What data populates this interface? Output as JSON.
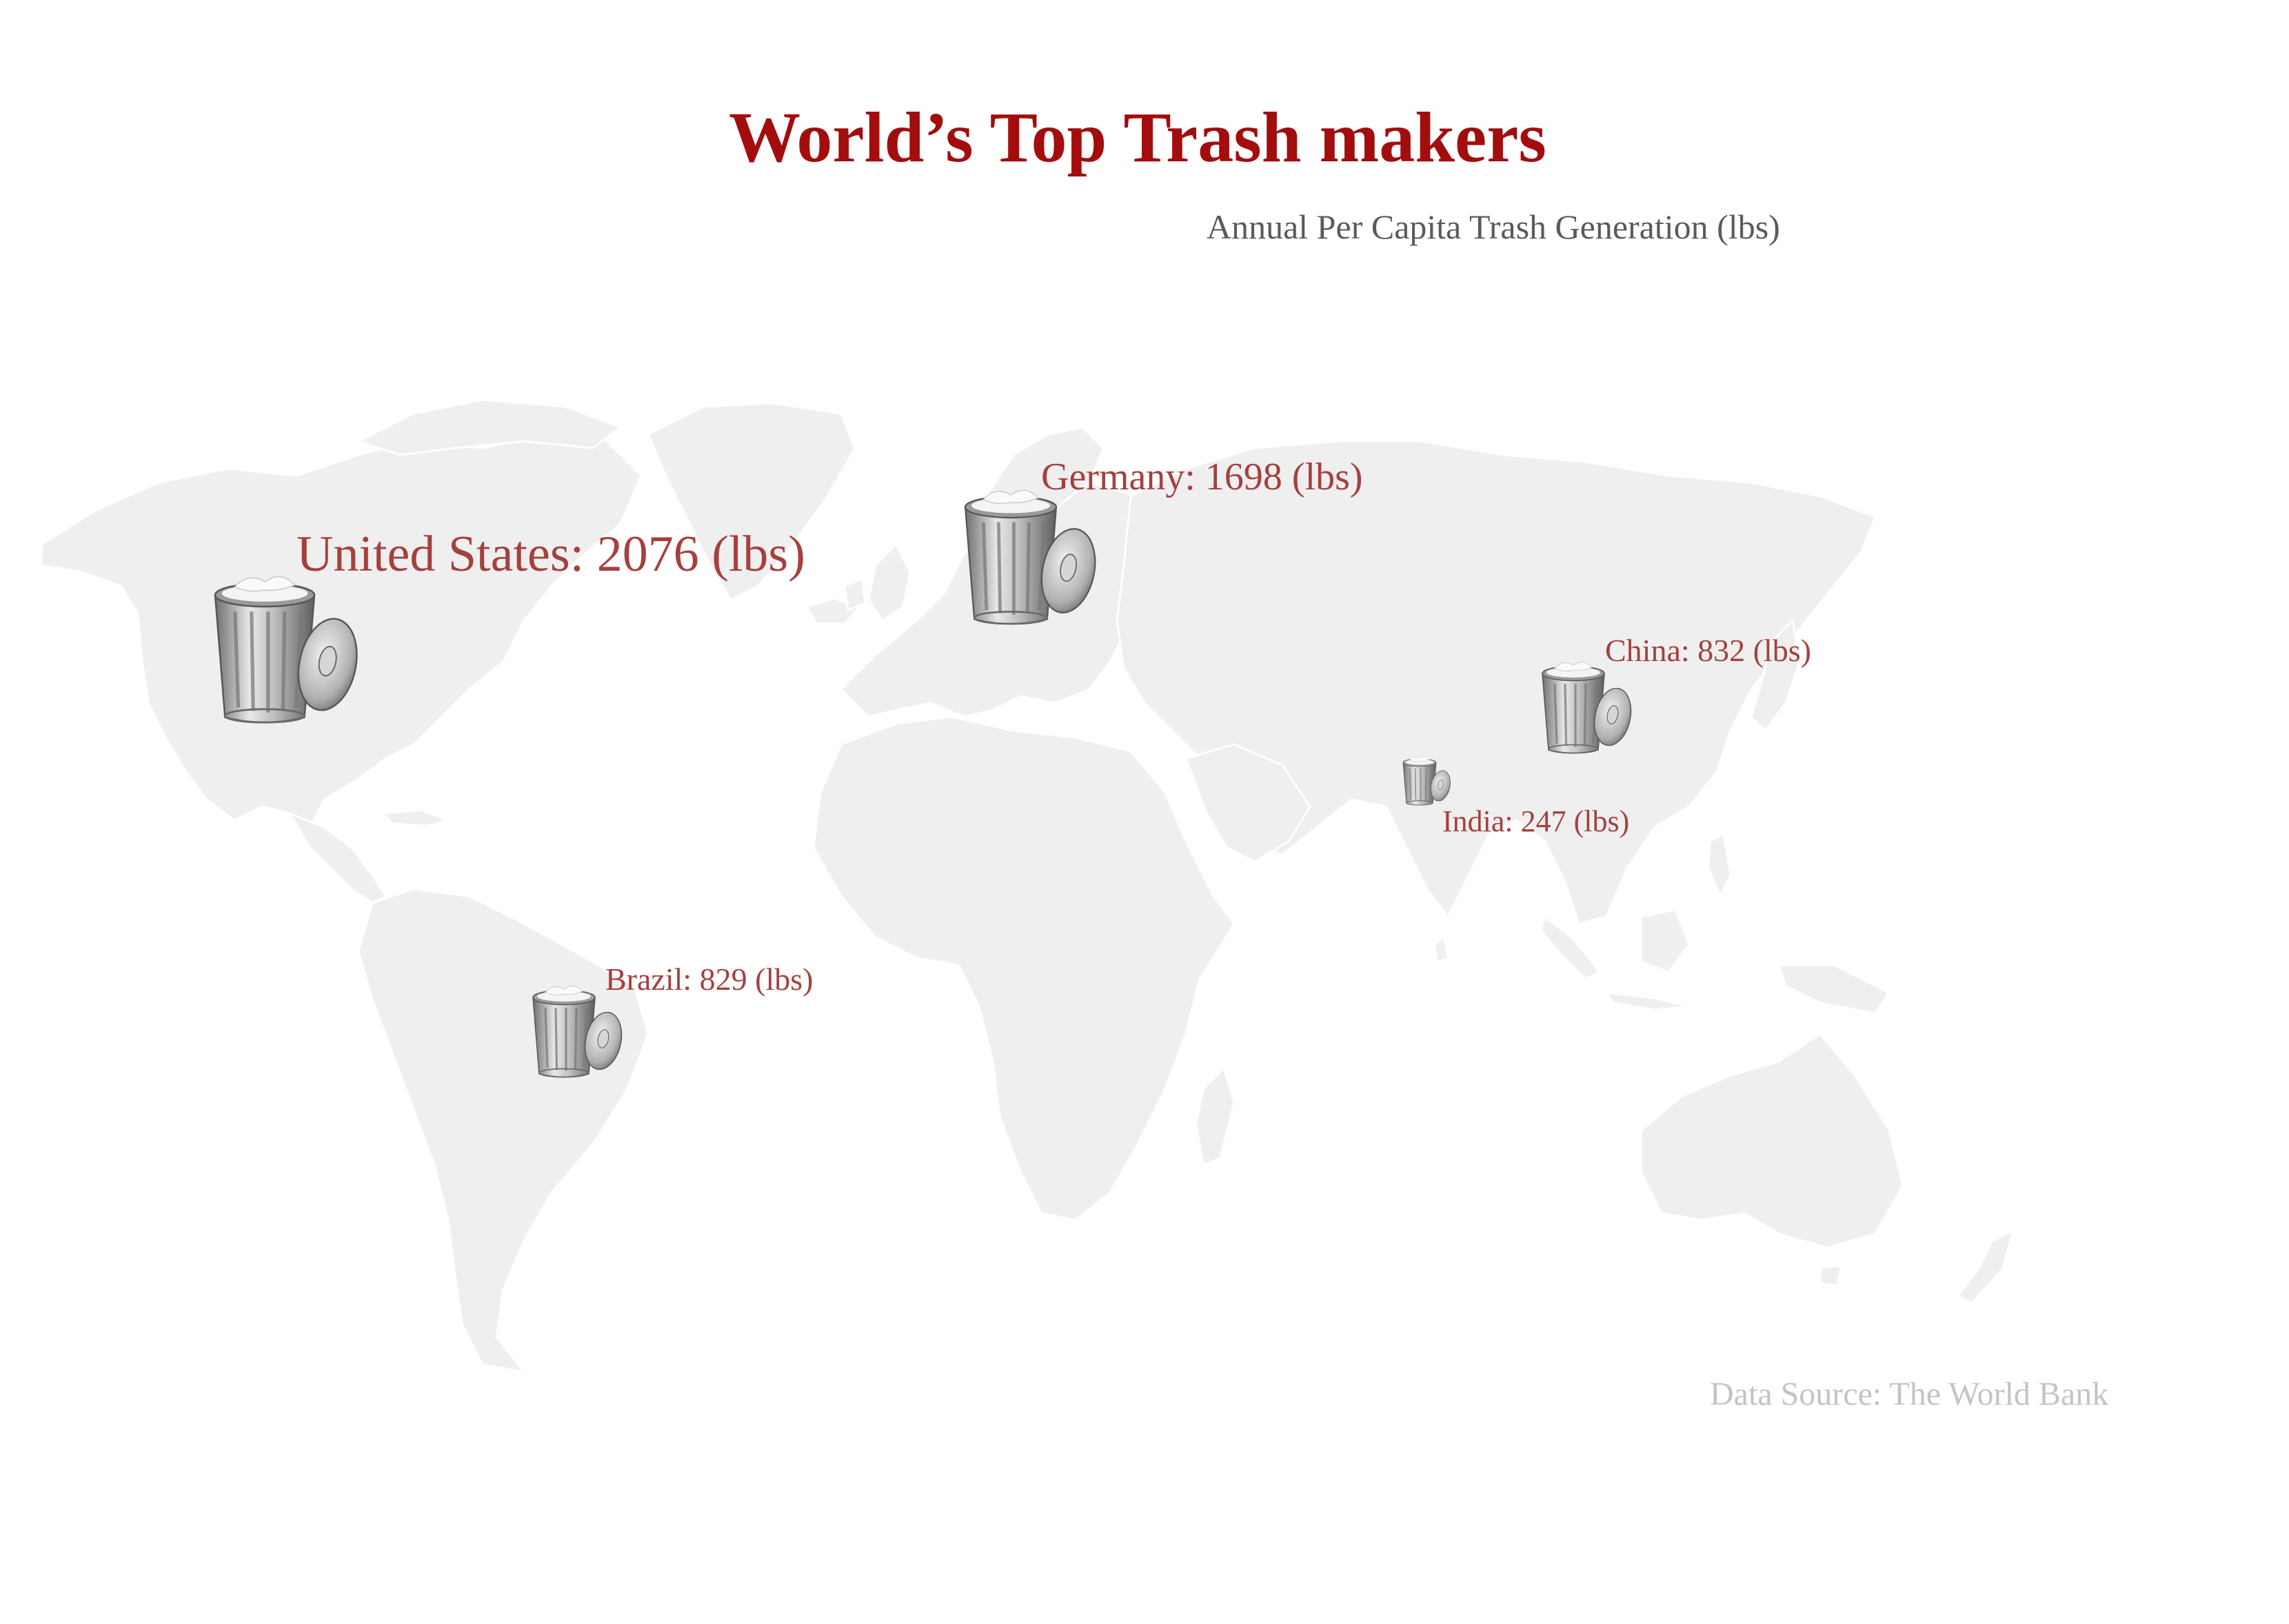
{
  "title": "World’s Top Trash makers",
  "subtitle": "Annual Per Capita Trash Generation (lbs)",
  "source": "Data Source: The World Bank",
  "map": {
    "land_color": "#efefef",
    "border_color": "#ffffff",
    "icon": "trash-can-icon"
  },
  "colors": {
    "title": "#a30d0d",
    "label": "#a5403f",
    "subtitle": "#5a5a5a",
    "source": "#c4c4c4"
  },
  "countries": [
    {
      "id": "united-states",
      "name": "United States",
      "value": 2076,
      "unit": "(lbs)",
      "label": "United States: 2076 (lbs)"
    },
    {
      "id": "germany",
      "name": "Germany",
      "value": 1698,
      "unit": "(lbs)",
      "label": "Germany: 1698 (lbs)"
    },
    {
      "id": "china",
      "name": "China",
      "value": 832,
      "unit": "(lbs)",
      "label": "China: 832 (lbs)"
    },
    {
      "id": "india",
      "name": "India",
      "value": 247,
      "unit": "(lbs)",
      "label": "India: 247 (lbs)"
    },
    {
      "id": "brazil",
      "name": "Brazil",
      "value": 829,
      "unit": "(lbs)",
      "label": "Brazil: 829 (lbs)"
    }
  ]
}
